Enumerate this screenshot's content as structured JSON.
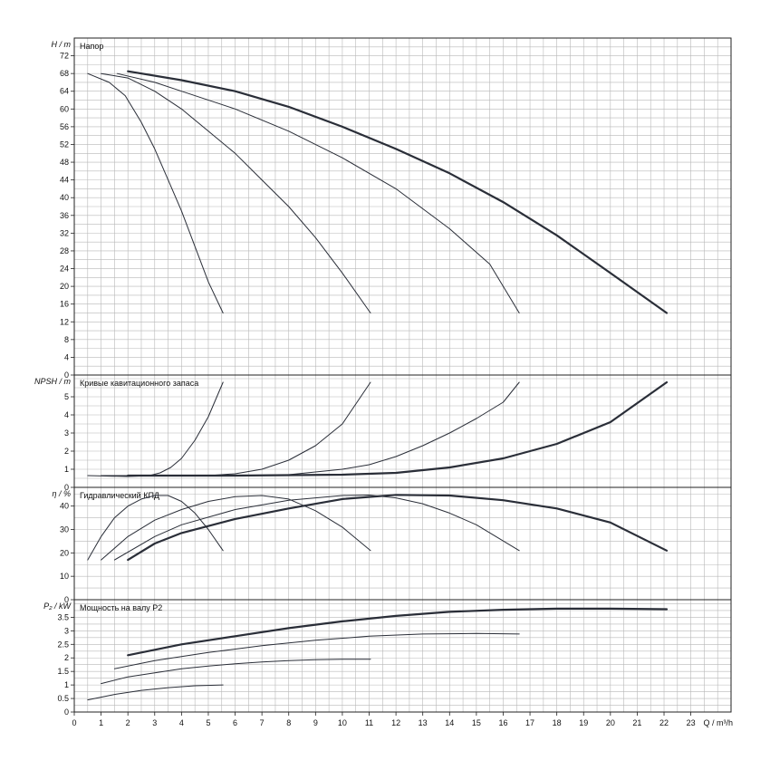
{
  "chart_data": [
    {
      "type": "line",
      "title": "Напор",
      "ylabel": "H / m",
      "ylim": [
        0,
        76
      ],
      "yticks": [
        0,
        4,
        8,
        12,
        16,
        20,
        24,
        28,
        32,
        36,
        40,
        44,
        48,
        52,
        56,
        60,
        64,
        68,
        72
      ],
      "xlim": [
        0,
        24.5
      ],
      "series": [
        {
          "width": 1.0,
          "points": [
            [
              0.5,
              68
            ],
            [
              1.3,
              66
            ],
            [
              1.9,
              63
            ],
            [
              2.5,
              57
            ],
            [
              3,
              51
            ],
            [
              3.5,
              44
            ],
            [
              4,
              37
            ],
            [
              4.5,
              29
            ],
            [
              5,
              21
            ],
            [
              5.55,
              14
            ]
          ]
        },
        {
          "width": 1.0,
          "points": [
            [
              1,
              68
            ],
            [
              2,
              67
            ],
            [
              3,
              64
            ],
            [
              4,
              60
            ],
            [
              5,
              55
            ],
            [
              6,
              50
            ],
            [
              7,
              44
            ],
            [
              8,
              38
            ],
            [
              9,
              31
            ],
            [
              10,
              23
            ],
            [
              11.05,
              14
            ]
          ]
        },
        {
          "width": 1.0,
          "points": [
            [
              1.6,
              68
            ],
            [
              3,
              66
            ],
            [
              4,
              64
            ],
            [
              6,
              60
            ],
            [
              8,
              55
            ],
            [
              10,
              49
            ],
            [
              12,
              42
            ],
            [
              14,
              33
            ],
            [
              15.5,
              25
            ],
            [
              16.6,
              14
            ]
          ]
        },
        {
          "width": 2.2,
          "points": [
            [
              2,
              68.5
            ],
            [
              4,
              66.5
            ],
            [
              6,
              64
            ],
            [
              8,
              60.5
            ],
            [
              10,
              56
            ],
            [
              12,
              51
            ],
            [
              14,
              45.5
            ],
            [
              16,
              39
            ],
            [
              18,
              31.5
            ],
            [
              20,
              23
            ],
            [
              22.1,
              14
            ]
          ]
        }
      ]
    },
    {
      "type": "line",
      "title": "Кривые кавитационного запаса",
      "ylabel": "NPSH / m",
      "ylim": [
        0,
        6.2
      ],
      "yticks": [
        0,
        1,
        2,
        3,
        4,
        5
      ],
      "xlim": [
        0,
        24.5
      ],
      "series": [
        {
          "width": 1.0,
          "points": [
            [
              0.5,
              0.65
            ],
            [
              2,
              0.6
            ],
            [
              2.8,
              0.65
            ],
            [
              3.2,
              0.8
            ],
            [
              3.6,
              1.1
            ],
            [
              4,
              1.6
            ],
            [
              4.5,
              2.6
            ],
            [
              5,
              3.9
            ],
            [
              5.55,
              5.8
            ]
          ]
        },
        {
          "width": 1.0,
          "points": [
            [
              1,
              0.65
            ],
            [
              5,
              0.65
            ],
            [
              6,
              0.75
            ],
            [
              7,
              1.0
            ],
            [
              8,
              1.5
            ],
            [
              9,
              2.3
            ],
            [
              10,
              3.5
            ],
            [
              11.05,
              5.8
            ]
          ]
        },
        {
          "width": 1.0,
          "points": [
            [
              1.5,
              0.65
            ],
            [
              6,
              0.65
            ],
            [
              8,
              0.7
            ],
            [
              10,
              1.0
            ],
            [
              11,
              1.25
            ],
            [
              12,
              1.7
            ],
            [
              13,
              2.3
            ],
            [
              14,
              3.0
            ],
            [
              15,
              3.8
            ],
            [
              16,
              4.7
            ],
            [
              16.6,
              5.8
            ]
          ]
        },
        {
          "width": 2.2,
          "points": [
            [
              2,
              0.65
            ],
            [
              6,
              0.65
            ],
            [
              10,
              0.7
            ],
            [
              12,
              0.8
            ],
            [
              14,
              1.1
            ],
            [
              16,
              1.6
            ],
            [
              18,
              2.4
            ],
            [
              20,
              3.6
            ],
            [
              22.1,
              5.8
            ]
          ]
        }
      ]
    },
    {
      "type": "line",
      "title": "Гидравлический КПД",
      "ylabel": "η / %",
      "ylim": [
        0,
        48
      ],
      "yticks": [
        0,
        10,
        20,
        30,
        40
      ],
      "xlim": [
        0,
        24.5
      ],
      "series": [
        {
          "width": 1.0,
          "points": [
            [
              0.5,
              17
            ],
            [
              1,
              27
            ],
            [
              1.5,
              35
            ],
            [
              2,
              40
            ],
            [
              2.5,
              43
            ],
            [
              3,
              44.5
            ],
            [
              3.5,
              44.5
            ],
            [
              4,
              42
            ],
            [
              4.5,
              37
            ],
            [
              5,
              30
            ],
            [
              5.55,
              21
            ]
          ]
        },
        {
          "width": 1.0,
          "points": [
            [
              1,
              17
            ],
            [
              2,
              27
            ],
            [
              3,
              34
            ],
            [
              4,
              38.5
            ],
            [
              5,
              42
            ],
            [
              6,
              44
            ],
            [
              7,
              44.5
            ],
            [
              8,
              43
            ],
            [
              9,
              38
            ],
            [
              10,
              31
            ],
            [
              11.05,
              21
            ]
          ]
        },
        {
          "width": 1.0,
          "points": [
            [
              1.5,
              17
            ],
            [
              3,
              27
            ],
            [
              4,
              32
            ],
            [
              6,
              38.5
            ],
            [
              8,
              42.5
            ],
            [
              10,
              44.5
            ],
            [
              11,
              44.7
            ],
            [
              12,
              43.5
            ],
            [
              13,
              41
            ],
            [
              14,
              37
            ],
            [
              15,
              32
            ],
            [
              16.6,
              21
            ]
          ]
        },
        {
          "width": 2.2,
          "points": [
            [
              2,
              17
            ],
            [
              3,
              24
            ],
            [
              4,
              28.5
            ],
            [
              6,
              34.5
            ],
            [
              8,
              39
            ],
            [
              10,
              43
            ],
            [
              12,
              44.8
            ],
            [
              14,
              44.5
            ],
            [
              16,
              42.5
            ],
            [
              18,
              39
            ],
            [
              20,
              33
            ],
            [
              22.1,
              21
            ]
          ]
        }
      ]
    },
    {
      "type": "line",
      "title": "Мощность на валу P2",
      "ylabel": "P₂ / kW",
      "ylim": [
        0,
        4.15
      ],
      "yticks": [
        0,
        0.5,
        1,
        1.5,
        2,
        2.5,
        3,
        3.5
      ],
      "ytick_labels": [
        "0",
        "0.5",
        "1",
        "1.5",
        "2",
        "2.5",
        "3",
        "3.5"
      ],
      "xlim": [
        0,
        24.5
      ],
      "xticks": [
        0,
        1,
        2,
        3,
        4,
        5,
        6,
        7,
        8,
        9,
        10,
        11,
        12,
        13,
        14,
        15,
        16,
        17,
        18,
        19,
        20,
        21,
        22,
        23
      ],
      "xlabel": "Q / m³/h",
      "series": [
        {
          "width": 1.0,
          "points": [
            [
              0.5,
              0.45
            ],
            [
              1.5,
              0.65
            ],
            [
              2.5,
              0.8
            ],
            [
              3.5,
              0.9
            ],
            [
              4.5,
              0.97
            ],
            [
              5.55,
              1.0
            ]
          ]
        },
        {
          "width": 1.0,
          "points": [
            [
              1,
              1.05
            ],
            [
              2,
              1.3
            ],
            [
              3,
              1.45
            ],
            [
              4,
              1.6
            ],
            [
              5,
              1.7
            ],
            [
              6,
              1.78
            ],
            [
              7,
              1.85
            ],
            [
              8,
              1.9
            ],
            [
              9,
              1.93
            ],
            [
              10,
              1.95
            ],
            [
              11.05,
              1.95
            ]
          ]
        },
        {
          "width": 1.0,
          "points": [
            [
              1.5,
              1.6
            ],
            [
              3,
              1.9
            ],
            [
              5,
              2.2
            ],
            [
              7,
              2.45
            ],
            [
              9,
              2.65
            ],
            [
              11,
              2.8
            ],
            [
              13,
              2.88
            ],
            [
              15,
              2.9
            ],
            [
              16.6,
              2.88
            ]
          ]
        },
        {
          "width": 2.2,
          "points": [
            [
              2,
              2.1
            ],
            [
              4,
              2.5
            ],
            [
              6,
              2.8
            ],
            [
              8,
              3.1
            ],
            [
              10,
              3.35
            ],
            [
              12,
              3.55
            ],
            [
              14,
              3.7
            ],
            [
              16,
              3.78
            ],
            [
              18,
              3.82
            ],
            [
              20,
              3.82
            ],
            [
              22.1,
              3.8
            ]
          ]
        }
      ]
    }
  ]
}
